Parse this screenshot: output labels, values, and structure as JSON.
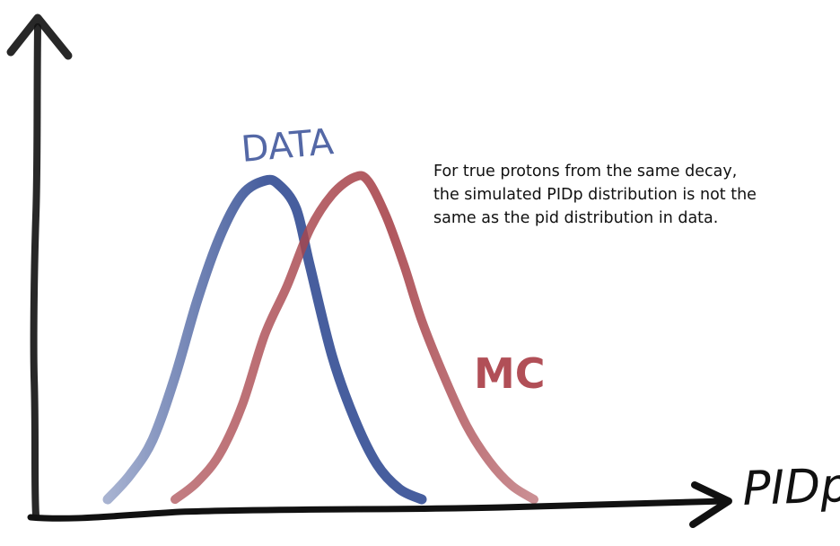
{
  "chart_data": {
    "type": "line",
    "title": "",
    "xlabel": "PIDp",
    "ylabel": "",
    "grid": false,
    "series": [
      {
        "name": "DATA",
        "color": "#3d5699",
        "x": [
          0,
          0.05,
          0.1,
          0.15,
          0.2,
          0.25,
          0.3,
          0.35,
          0.38,
          0.42,
          0.45,
          0.5,
          0.55,
          0.6,
          0.65,
          0.7
        ],
        "values": [
          0.01,
          0.08,
          0.18,
          0.36,
          0.58,
          0.76,
          0.88,
          0.92,
          0.91,
          0.84,
          0.68,
          0.42,
          0.24,
          0.11,
          0.04,
          0.01
        ]
      },
      {
        "name": "MC",
        "color": "#a8454c",
        "x": [
          0.15,
          0.2,
          0.25,
          0.3,
          0.35,
          0.4,
          0.45,
          0.5,
          0.55,
          0.58,
          0.62,
          0.66,
          0.7,
          0.75,
          0.8,
          0.85,
          0.9,
          0.95
        ],
        "values": [
          0.01,
          0.06,
          0.14,
          0.28,
          0.48,
          0.62,
          0.78,
          0.88,
          0.93,
          0.92,
          0.82,
          0.68,
          0.52,
          0.36,
          0.22,
          0.12,
          0.05,
          0.01
        ]
      }
    ],
    "annotations": [
      {
        "lines": [
          "For true protons from the same decay,",
          "the simulated PIDp distribution is not the",
          "same as the pid distribution in data."
        ]
      }
    ]
  },
  "colors": {
    "axis": "#111111",
    "data_curve": "#3d5699",
    "mc_curve": "#a8454c"
  }
}
